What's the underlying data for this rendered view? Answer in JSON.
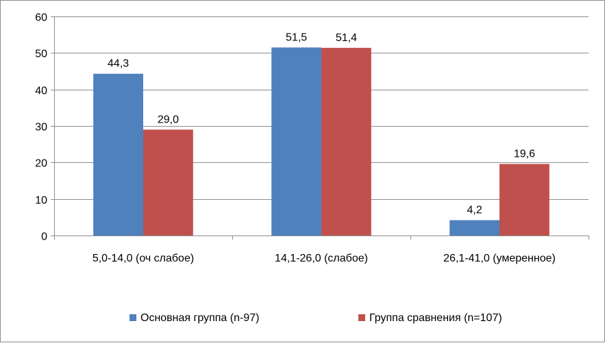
{
  "chart_data": {
    "type": "bar",
    "title": "",
    "xlabel": "",
    "ylabel": "",
    "ylim": [
      0,
      60
    ],
    "yticks": [
      0,
      10,
      20,
      30,
      40,
      50,
      60
    ],
    "grid": true,
    "legend_position": "bottom",
    "categories": [
      "5,0-14,0 (оч слабое)",
      "14,1-26,0 (слабое)",
      "26,1-41,0 (умеренное)"
    ],
    "series": [
      {
        "name": "Основная группа (n-97)",
        "color": "#4F81BD",
        "values": [
          44.3,
          51.5,
          4.2
        ],
        "labels": [
          "44,3",
          "51,5",
          "4,2"
        ]
      },
      {
        "name": "Группа сравнения (n=107)",
        "color": "#C0504D",
        "values": [
          29.0,
          51.4,
          19.6
        ],
        "labels": [
          "29,0",
          "51,4",
          "19,6"
        ]
      }
    ]
  }
}
